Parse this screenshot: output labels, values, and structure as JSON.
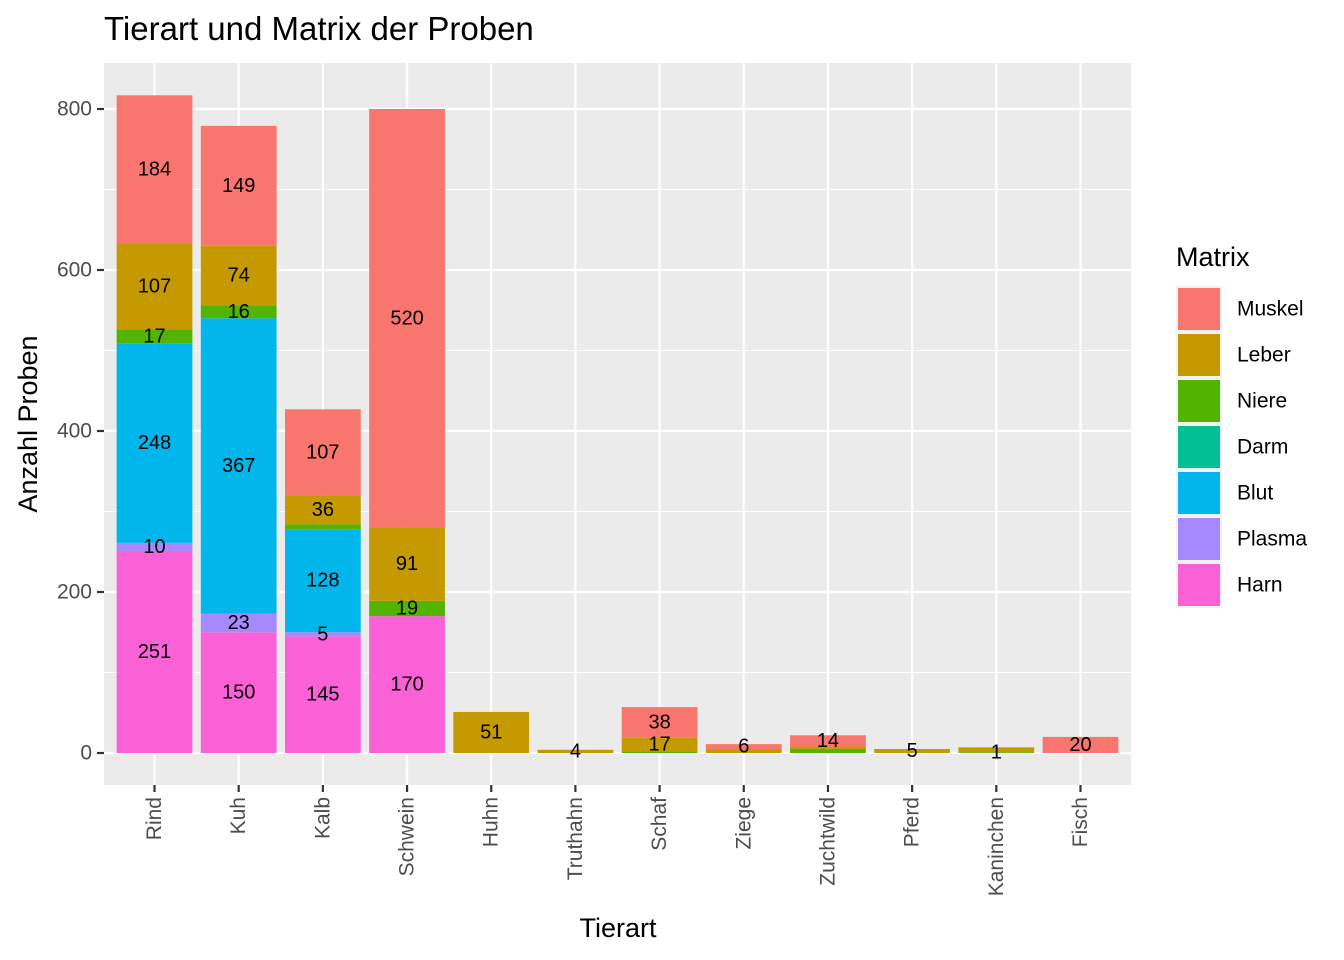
{
  "chart_data": {
    "type": "bar",
    "stacked": true,
    "title": "Tierart und Matrix der Proben",
    "xlabel": "Tierart",
    "ylabel": "Anzahl Proben",
    "ylim": [
      -40,
      860
    ],
    "yticks": [
      0,
      200,
      400,
      600,
      800
    ],
    "grid": true,
    "legend_title": "Matrix",
    "legend_position": "right",
    "categories": [
      "Rind",
      "Kuh",
      "Kalb",
      "Schwein",
      "Huhn",
      "Truthahn",
      "Schaf",
      "Ziege",
      "Zuchtwild",
      "Pferd",
      "Kaninchen",
      "Fisch"
    ],
    "stack_order": [
      "Harn",
      "Plasma",
      "Blut",
      "Darm",
      "Niere",
      "Leber",
      "Muskel"
    ],
    "series": [
      {
        "name": "Muskel",
        "color": "#F8766D",
        "values": [
          184,
          149,
          107,
          520,
          0,
          0,
          38,
          6,
          14,
          0,
          0,
          20
        ]
      },
      {
        "name": "Leber",
        "color": "#C49A00",
        "values": [
          107,
          74,
          36,
          91,
          51,
          4,
          17,
          5,
          3,
          5,
          6,
          0
        ]
      },
      {
        "name": "Niere",
        "color": "#53B400",
        "values": [
          17,
          16,
          6,
          19,
          0,
          0,
          2,
          0,
          5,
          0,
          1,
          0
        ]
      },
      {
        "name": "Darm",
        "color": "#00C094",
        "values": [
          0,
          0,
          0,
          0,
          0,
          0,
          0,
          0,
          0,
          0,
          0,
          0
        ]
      },
      {
        "name": "Blut",
        "color": "#00B6EB",
        "values": [
          248,
          367,
          128,
          0,
          0,
          0,
          0,
          0,
          0,
          0,
          0,
          0
        ]
      },
      {
        "name": "Plasma",
        "color": "#A58AFF",
        "values": [
          10,
          23,
          5,
          0,
          0,
          0,
          0,
          0,
          0,
          0,
          0,
          0
        ]
      },
      {
        "name": "Harn",
        "color": "#FB61D7",
        "values": [
          251,
          150,
          145,
          170,
          0,
          0,
          0,
          0,
          0,
          0,
          0,
          0
        ]
      }
    ],
    "data_labels": [
      {
        "category": "Rind",
        "series": "Muskel",
        "text": "184"
      },
      {
        "category": "Rind",
        "series": "Leber",
        "text": "107"
      },
      {
        "category": "Rind",
        "series": "Niere",
        "text": "17"
      },
      {
        "category": "Rind",
        "series": "Blut",
        "text": "248"
      },
      {
        "category": "Rind",
        "series": "Plasma",
        "text": "10"
      },
      {
        "category": "Rind",
        "series": "Harn",
        "text": "251"
      },
      {
        "category": "Kuh",
        "series": "Muskel",
        "text": "149"
      },
      {
        "category": "Kuh",
        "series": "Leber",
        "text": "74"
      },
      {
        "category": "Kuh",
        "series": "Niere",
        "text": "16"
      },
      {
        "category": "Kuh",
        "series": "Blut",
        "text": "367"
      },
      {
        "category": "Kuh",
        "series": "Plasma",
        "text": "23"
      },
      {
        "category": "Kuh",
        "series": "Harn",
        "text": "150"
      },
      {
        "category": "Kalb",
        "series": "Muskel",
        "text": "107"
      },
      {
        "category": "Kalb",
        "series": "Leber",
        "text": "36"
      },
      {
        "category": "Kalb",
        "series": "Blut",
        "text": "128"
      },
      {
        "category": "Kalb",
        "series": "Plasma",
        "text": "5"
      },
      {
        "category": "Kalb",
        "series": "Harn",
        "text": "145"
      },
      {
        "category": "Schwein",
        "series": "Muskel",
        "text": "520"
      },
      {
        "category": "Schwein",
        "series": "Leber",
        "text": "91"
      },
      {
        "category": "Schwein",
        "series": "Niere",
        "text": "19"
      },
      {
        "category": "Schwein",
        "series": "Harn",
        "text": "170"
      },
      {
        "category": "Huhn",
        "series": "Leber",
        "text": "51"
      },
      {
        "category": "Truthahn",
        "series": "Leber",
        "text": "4"
      },
      {
        "category": "Schaf",
        "series": "Muskel",
        "text": "38"
      },
      {
        "category": "Schaf",
        "series": "Leber",
        "text": "17"
      },
      {
        "category": "Ziege",
        "series": "Muskel",
        "text": "6"
      },
      {
        "category": "Zuchtwild",
        "series": "Muskel",
        "text": "14"
      },
      {
        "category": "Pferd",
        "series": "Leber",
        "text": "5"
      },
      {
        "category": "Kaninchen",
        "series": "Niere",
        "text": "1"
      },
      {
        "category": "Fisch",
        "series": "Muskel",
        "text": "20"
      }
    ]
  }
}
